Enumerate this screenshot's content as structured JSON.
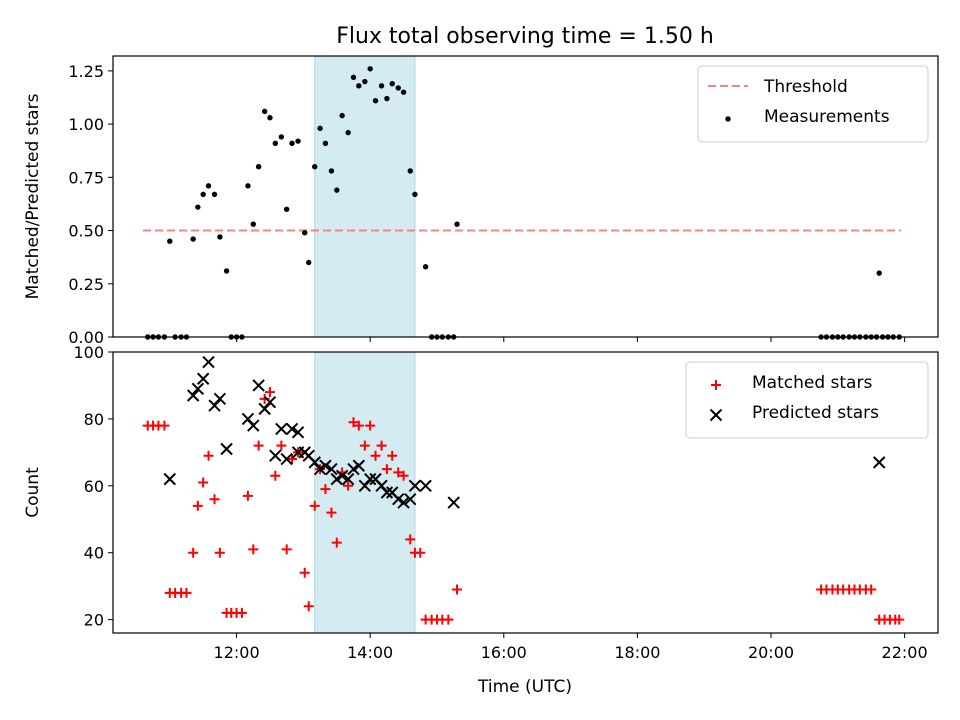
{
  "title": "Flux total observing time = 1.50 h",
  "xlabel": "Time (UTC)",
  "chart_data": [
    {
      "type": "scatter",
      "title": "Flux total observing time = 1.50 h",
      "ylabel": "Matched/Predicted stars",
      "xlabel": "",
      "x_unit": "hours UTC",
      "xlim": [
        10.15,
        22.5
      ],
      "ylim": [
        0,
        1.32
      ],
      "y_ticks": [
        "0.00",
        "0.25",
        "0.50",
        "0.75",
        "1.00",
        "1.25"
      ],
      "y_tick_values": [
        0,
        0.25,
        0.5,
        0.75,
        1.0,
        1.25
      ],
      "legend_position": "top-right",
      "shaded_span": [
        13.17,
        14.67
      ],
      "shaded_color": "#add8e6",
      "threshold": {
        "name": "Threshold",
        "y": 0.5,
        "x_range": [
          10.6,
          21.95
        ],
        "color": "#ff7f7f",
        "style": "dashed"
      },
      "series": [
        {
          "name": "Measurements",
          "marker": "dot",
          "color": "#000000",
          "points": [
            [
              10.67,
              0
            ],
            [
              10.75,
              0
            ],
            [
              10.83,
              0
            ],
            [
              10.92,
              0
            ],
            [
              11.0,
              0.45
            ],
            [
              11.08,
              0
            ],
            [
              11.17,
              0
            ],
            [
              11.25,
              0
            ],
            [
              11.35,
              0.46
            ],
            [
              11.42,
              0.61
            ],
            [
              11.5,
              0.67
            ],
            [
              11.58,
              0.71
            ],
            [
              11.67,
              0.67
            ],
            [
              11.75,
              0.47
            ],
            [
              11.85,
              0.31
            ],
            [
              11.92,
              0
            ],
            [
              12.0,
              0
            ],
            [
              12.08,
              0
            ],
            [
              12.17,
              0.71
            ],
            [
              12.25,
              0.53
            ],
            [
              12.33,
              0.8
            ],
            [
              12.42,
              1.06
            ],
            [
              12.5,
              1.03
            ],
            [
              12.58,
              0.91
            ],
            [
              12.67,
              0.94
            ],
            [
              12.75,
              0.6
            ],
            [
              12.83,
              0.91
            ],
            [
              12.92,
              0.92
            ],
            [
              13.02,
              0.49
            ],
            [
              13.08,
              0.35
            ],
            [
              13.17,
              0.8
            ],
            [
              13.25,
              0.98
            ],
            [
              13.33,
              0.91
            ],
            [
              13.42,
              0.78
            ],
            [
              13.5,
              0.69
            ],
            [
              13.58,
              1.04
            ],
            [
              13.67,
              0.96
            ],
            [
              13.75,
              1.22
            ],
            [
              13.83,
              1.18
            ],
            [
              13.92,
              1.2
            ],
            [
              14.0,
              1.26
            ],
            [
              14.08,
              1.11
            ],
            [
              14.17,
              1.18
            ],
            [
              14.25,
              1.12
            ],
            [
              14.33,
              1.19
            ],
            [
              14.42,
              1.17
            ],
            [
              14.5,
              1.15
            ],
            [
              14.6,
              0.78
            ],
            [
              14.67,
              0.67
            ],
            [
              14.83,
              0.33
            ],
            [
              14.92,
              0
            ],
            [
              15.0,
              0
            ],
            [
              15.08,
              0
            ],
            [
              15.17,
              0
            ],
            [
              15.25,
              0
            ],
            [
              15.3,
              0.53
            ],
            [
              20.75,
              0
            ],
            [
              20.83,
              0
            ],
            [
              20.92,
              0
            ],
            [
              21.0,
              0
            ],
            [
              21.08,
              0
            ],
            [
              21.17,
              0
            ],
            [
              21.25,
              0
            ],
            [
              21.33,
              0
            ],
            [
              21.42,
              0
            ],
            [
              21.5,
              0
            ],
            [
              21.58,
              0
            ],
            [
              21.62,
              0.3
            ],
            [
              21.67,
              0
            ],
            [
              21.75,
              0
            ],
            [
              21.83,
              0
            ],
            [
              21.92,
              0
            ]
          ]
        }
      ]
    },
    {
      "type": "scatter",
      "title": "",
      "ylabel": "Count",
      "xlabel": "Time (UTC)",
      "x_unit": "hours UTC",
      "xlim": [
        10.15,
        22.5
      ],
      "ylim": [
        16,
        100
      ],
      "y_ticks": [
        "20",
        "40",
        "60",
        "80",
        "100"
      ],
      "y_tick_values": [
        20,
        40,
        60,
        80,
        100
      ],
      "x_ticks": [
        "12:00",
        "14:00",
        "16:00",
        "18:00",
        "20:00",
        "22:00"
      ],
      "x_tick_values": [
        12,
        14,
        16,
        18,
        20,
        22
      ],
      "legend_position": "top-right",
      "shaded_span": [
        13.17,
        14.67
      ],
      "shaded_color": "#add8e6",
      "series": [
        {
          "name": "Matched stars",
          "marker": "plus",
          "color": "#ff0000",
          "points": [
            [
              10.67,
              78
            ],
            [
              10.75,
              78
            ],
            [
              10.83,
              78
            ],
            [
              10.92,
              78
            ],
            [
              11.0,
              28
            ],
            [
              11.08,
              28
            ],
            [
              11.17,
              28
            ],
            [
              11.25,
              28
            ],
            [
              11.35,
              40
            ],
            [
              11.42,
              54
            ],
            [
              11.5,
              61
            ],
            [
              11.58,
              69
            ],
            [
              11.67,
              56
            ],
            [
              11.75,
              40
            ],
            [
              11.85,
              22
            ],
            [
              11.92,
              22
            ],
            [
              12.0,
              22
            ],
            [
              12.08,
              22
            ],
            [
              12.17,
              57
            ],
            [
              12.25,
              41
            ],
            [
              12.33,
              72
            ],
            [
              12.42,
              86
            ],
            [
              12.5,
              88
            ],
            [
              12.58,
              63
            ],
            [
              12.67,
              72
            ],
            [
              12.75,
              41
            ],
            [
              12.83,
              68
            ],
            [
              12.92,
              70
            ],
            [
              13.02,
              34
            ],
            [
              13.08,
              24
            ],
            [
              13.17,
              54
            ],
            [
              13.25,
              65
            ],
            [
              13.33,
              59
            ],
            [
              13.42,
              52
            ],
            [
              13.5,
              43
            ],
            [
              13.58,
              64
            ],
            [
              13.67,
              60
            ],
            [
              13.75,
              79
            ],
            [
              13.83,
              78
            ],
            [
              13.92,
              72
            ],
            [
              14.0,
              78
            ],
            [
              14.08,
              69
            ],
            [
              14.17,
              72
            ],
            [
              14.25,
              65
            ],
            [
              14.33,
              69
            ],
            [
              14.42,
              64
            ],
            [
              14.5,
              63
            ],
            [
              14.6,
              44
            ],
            [
              14.67,
              40
            ],
            [
              14.75,
              40
            ],
            [
              14.83,
              20
            ],
            [
              14.92,
              20
            ],
            [
              15.0,
              20
            ],
            [
              15.08,
              20
            ],
            [
              15.17,
              20
            ],
            [
              15.3,
              29
            ],
            [
              20.75,
              29
            ],
            [
              20.83,
              29
            ],
            [
              20.92,
              29
            ],
            [
              21.0,
              29
            ],
            [
              21.08,
              29
            ],
            [
              21.17,
              29
            ],
            [
              21.25,
              29
            ],
            [
              21.33,
              29
            ],
            [
              21.42,
              29
            ],
            [
              21.5,
              29
            ],
            [
              21.62,
              20
            ],
            [
              21.7,
              20
            ],
            [
              21.78,
              20
            ],
            [
              21.86,
              20
            ],
            [
              21.92,
              20
            ]
          ]
        },
        {
          "name": "Predicted stars",
          "marker": "x",
          "color": "#000000",
          "points": [
            [
              11.0,
              62
            ],
            [
              11.35,
              87
            ],
            [
              11.42,
              89
            ],
            [
              11.5,
              92
            ],
            [
              11.58,
              97
            ],
            [
              11.67,
              84
            ],
            [
              11.75,
              86
            ],
            [
              11.85,
              71
            ],
            [
              12.17,
              80
            ],
            [
              12.25,
              78
            ],
            [
              12.33,
              90
            ],
            [
              12.42,
              83
            ],
            [
              12.5,
              85
            ],
            [
              12.58,
              69
            ],
            [
              12.67,
              77
            ],
            [
              12.75,
              68
            ],
            [
              12.83,
              77
            ],
            [
              12.92,
              76
            ],
            [
              12.92,
              70
            ],
            [
              13.02,
              70
            ],
            [
              13.08,
              69
            ],
            [
              13.17,
              67
            ],
            [
              13.25,
              65
            ],
            [
              13.33,
              66
            ],
            [
              13.42,
              65
            ],
            [
              13.5,
              62
            ],
            [
              13.58,
              63
            ],
            [
              13.67,
              62
            ],
            [
              13.75,
              65
            ],
            [
              13.83,
              66
            ],
            [
              13.92,
              60
            ],
            [
              14.0,
              62
            ],
            [
              14.08,
              62
            ],
            [
              14.17,
              60
            ],
            [
              14.25,
              58
            ],
            [
              14.33,
              58
            ],
            [
              14.42,
              56
            ],
            [
              14.5,
              55
            ],
            [
              14.6,
              56
            ],
            [
              14.67,
              60
            ],
            [
              14.83,
              60
            ],
            [
              15.25,
              55
            ],
            [
              21.62,
              67
            ]
          ]
        }
      ]
    }
  ]
}
